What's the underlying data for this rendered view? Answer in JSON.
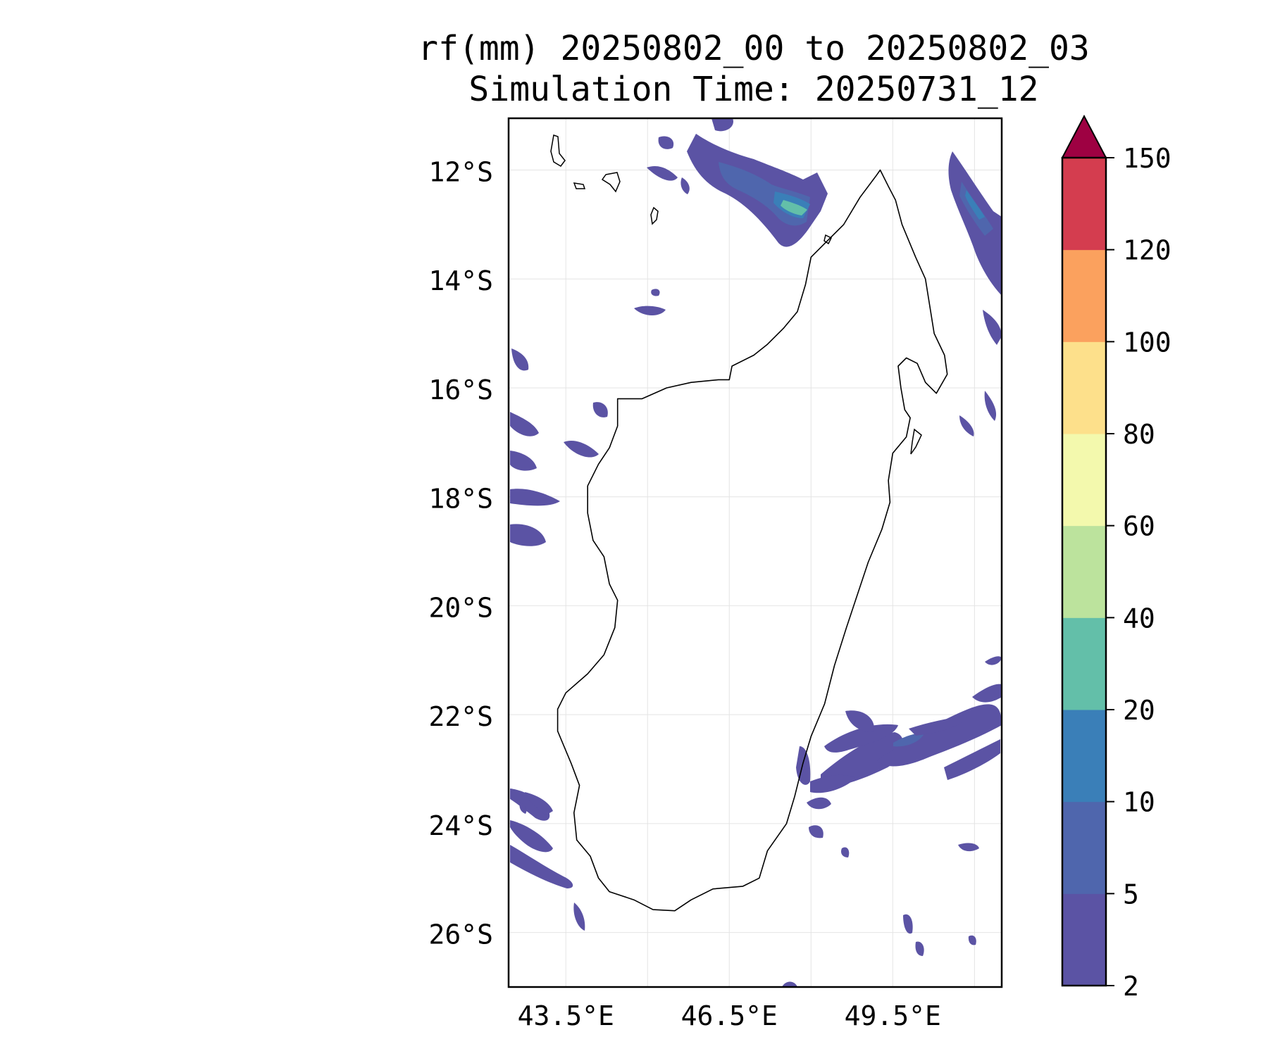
{
  "title_line1": "rf(mm) 20250802_00 to 20250802_03",
  "title_line2": "Simulation Time: 20250731_12",
  "map": {
    "lat_ticks": [
      {
        "value": -12,
        "label": "12°S"
      },
      {
        "value": -14,
        "label": "14°S"
      },
      {
        "value": -16,
        "label": "16°S"
      },
      {
        "value": -18,
        "label": "18°S"
      },
      {
        "value": -20,
        "label": "20°S"
      },
      {
        "value": -22,
        "label": "22°S"
      },
      {
        "value": -24,
        "label": "24°S"
      },
      {
        "value": -26,
        "label": "26°S"
      }
    ],
    "lon_ticks": [
      {
        "value": 43.5,
        "label": "43.5°E"
      },
      {
        "value": 46.5,
        "label": "46.5°E"
      },
      {
        "value": 49.5,
        "label": "49.5°E"
      }
    ],
    "lon_range": [
      42.45,
      51.5
    ],
    "lat_range": [
      -27.0,
      -11.05
    ],
    "coastline_lonlat": [
      [
        49.27,
        -12.0
      ],
      [
        49.42,
        -12.3
      ],
      [
        49.55,
        -12.55
      ],
      [
        49.67,
        -13.0
      ],
      [
        49.92,
        -13.6
      ],
      [
        50.1,
        -14.0
      ],
      [
        50.18,
        -14.5
      ],
      [
        50.26,
        -15.0
      ],
      [
        50.45,
        -15.4
      ],
      [
        50.5,
        -15.75
      ],
      [
        50.3,
        -16.1
      ],
      [
        50.1,
        -15.9
      ],
      [
        49.95,
        -15.55
      ],
      [
        49.75,
        -15.45
      ],
      [
        49.6,
        -15.6
      ],
      [
        49.65,
        -16.0
      ],
      [
        49.72,
        -16.4
      ],
      [
        49.82,
        -16.55
      ],
      [
        49.75,
        -16.9
      ],
      [
        49.5,
        -17.2
      ],
      [
        49.42,
        -17.7
      ],
      [
        49.45,
        -18.1
      ],
      [
        49.3,
        -18.6
      ],
      [
        49.05,
        -19.2
      ],
      [
        48.85,
        -19.8
      ],
      [
        48.65,
        -20.4
      ],
      [
        48.43,
        -21.1
      ],
      [
        48.25,
        -21.8
      ],
      [
        48.0,
        -22.4
      ],
      [
        47.85,
        -22.9
      ],
      [
        47.7,
        -23.5
      ],
      [
        47.55,
        -24.0
      ],
      [
        47.2,
        -24.5
      ],
      [
        47.05,
        -25.0
      ],
      [
        46.75,
        -25.15
      ],
      [
        46.2,
        -25.2
      ],
      [
        45.8,
        -25.4
      ],
      [
        45.5,
        -25.6
      ],
      [
        45.1,
        -25.58
      ],
      [
        44.75,
        -25.4
      ],
      [
        44.3,
        -25.25
      ],
      [
        44.1,
        -25.0
      ],
      [
        43.95,
        -24.6
      ],
      [
        43.7,
        -24.3
      ],
      [
        43.65,
        -23.8
      ],
      [
        43.75,
        -23.3
      ],
      [
        43.6,
        -22.9
      ],
      [
        43.35,
        -22.3
      ],
      [
        43.35,
        -21.9
      ],
      [
        43.5,
        -21.6
      ],
      [
        43.9,
        -21.25
      ],
      [
        44.2,
        -20.9
      ],
      [
        44.4,
        -20.4
      ],
      [
        44.45,
        -19.9
      ],
      [
        44.3,
        -19.6
      ],
      [
        44.2,
        -19.1
      ],
      [
        44.0,
        -18.8
      ],
      [
        43.9,
        -18.3
      ],
      [
        43.9,
        -17.8
      ],
      [
        44.1,
        -17.4
      ],
      [
        44.3,
        -17.1
      ],
      [
        44.45,
        -16.7
      ],
      [
        44.45,
        -16.2
      ],
      [
        44.9,
        -16.2
      ],
      [
        45.35,
        -16.0
      ],
      [
        45.8,
        -15.9
      ],
      [
        46.3,
        -15.85
      ],
      [
        46.5,
        -15.85
      ],
      [
        46.55,
        -15.6
      ],
      [
        46.95,
        -15.4
      ],
      [
        47.2,
        -15.2
      ],
      [
        47.5,
        -14.9
      ],
      [
        47.75,
        -14.6
      ],
      [
        47.9,
        -14.1
      ],
      [
        48.0,
        -13.6
      ],
      [
        48.3,
        -13.3
      ],
      [
        48.6,
        -13.0
      ],
      [
        48.9,
        -12.5
      ],
      [
        49.2,
        -12.1
      ],
      [
        49.27,
        -12.0
      ]
    ]
  },
  "colorbar": {
    "labels": [
      "2",
      "5",
      "10",
      "20",
      "40",
      "60",
      "80",
      "100",
      "120",
      "150"
    ],
    "colors": [
      "#5b53a4",
      "#4f66ad",
      "#3a7fb8",
      "#63bfa9",
      "#bce39d",
      "#f3f9ad",
      "#fde08b",
      "#fba15e",
      "#d43d4f"
    ],
    "extend_color": "#9e0142"
  },
  "chart_data": {
    "type": "heatmap",
    "title": "rf(mm) 20250802_00 to 20250802_03",
    "subtitle": "Simulation Time: 20250731_12",
    "levels": [
      2,
      5,
      10,
      20,
      40,
      60,
      80,
      100,
      120,
      150
    ],
    "extend": "max",
    "xlim": [
      42.45,
      51.5
    ],
    "ylim": [
      -27.0,
      -11.05
    ],
    "grid": true,
    "rain_areas": [
      {
        "lon": 48.0,
        "lat": -12.5,
        "level": "20-40"
      },
      {
        "lon": 47.3,
        "lat": -12.1,
        "level": "5-10"
      },
      {
        "lon": 46.6,
        "lat": -11.7,
        "level": "2-5"
      },
      {
        "lon": 51.2,
        "lat": -12.9,
        "level": "10-20"
      },
      {
        "lon": 51.3,
        "lat": -14.0,
        "level": "2-5"
      },
      {
        "lon": 51.3,
        "lat": -15.7,
        "level": "2-5"
      },
      {
        "lon": 51.1,
        "lat": -16.8,
        "level": "2-5"
      },
      {
        "lon": 45.6,
        "lat": -14.6,
        "level": "2-5"
      },
      {
        "lon": 42.7,
        "lat": -16.9,
        "level": "2-5"
      },
      {
        "lon": 42.8,
        "lat": -17.9,
        "level": "2-5"
      },
      {
        "lon": 42.7,
        "lat": -18.7,
        "level": "2-5"
      },
      {
        "lon": 44.1,
        "lat": -16.4,
        "level": "2-5"
      },
      {
        "lon": 43.7,
        "lat": -17.1,
        "level": "2-5"
      },
      {
        "lon": 48.3,
        "lat": -22.9,
        "level": "2-5"
      },
      {
        "lon": 49.0,
        "lat": -22.8,
        "level": "2-5"
      },
      {
        "lon": 49.6,
        "lat": -22.6,
        "level": "5-10"
      },
      {
        "lon": 50.7,
        "lat": -22.4,
        "level": "2-5"
      },
      {
        "lon": 47.8,
        "lat": -23.3,
        "level": "2-5"
      },
      {
        "lon": 42.8,
        "lat": -24.0,
        "level": "2-5"
      },
      {
        "lon": 42.9,
        "lat": -25.0,
        "level": "2-5"
      },
      {
        "lon": 49.7,
        "lat": -25.9,
        "level": "2-5"
      },
      {
        "lon": 50.9,
        "lat": -24.4,
        "level": "2-5"
      }
    ]
  }
}
